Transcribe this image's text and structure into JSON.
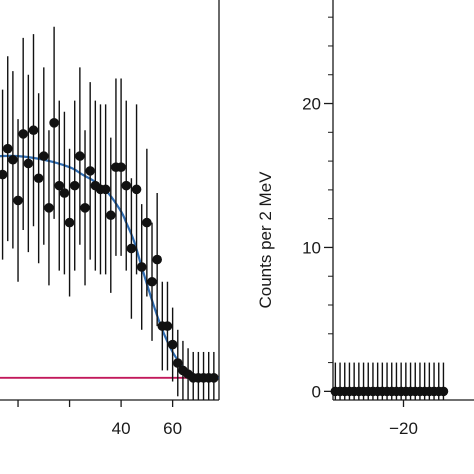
{
  "chart_data": [
    {
      "type": "scatter",
      "title": "",
      "xlabel": "",
      "ylabel": "",
      "xlim": [
        -7,
        78
      ],
      "ylim": [
        -0.6,
        8.6
      ],
      "x_ticks": [
        0,
        20,
        40,
        60,
        80
      ],
      "x_tick_labels": [
        "40",
        "60"
      ],
      "x_tick_label_values": [
        40,
        60
      ],
      "grid": false,
      "series": [
        {
          "kind": "points-with-error-bars",
          "color": "#111111",
          "x": [
            -6,
            -4,
            -2,
            0,
            2,
            4,
            6,
            8,
            10,
            12,
            14,
            16,
            18,
            20,
            22,
            24,
            26,
            28,
            30,
            32,
            34,
            36,
            38,
            40,
            42,
            44,
            46,
            48,
            50,
            52,
            54,
            56,
            58,
            60,
            62,
            64,
            66,
            68,
            70,
            72,
            74,
            76
          ],
          "y": [
            5.5,
            6.2,
            5.9,
            4.8,
            6.6,
            5.8,
            6.7,
            5.4,
            6.0,
            4.6,
            6.9,
            5.2,
            5.0,
            4.2,
            5.2,
            6.0,
            4.6,
            5.6,
            5.2,
            5.1,
            5.1,
            4.4,
            5.7,
            5.7,
            5.2,
            3.5,
            5.1,
            3.0,
            4.2,
            2.6,
            3.2,
            1.4,
            1.4,
            0.9,
            0.4,
            0.2,
            0.1,
            0.0,
            0.0,
            0.0,
            0.0,
            0.0
          ],
          "err": [
            2.3,
            2.5,
            2.4,
            2.2,
            2.6,
            2.4,
            2.6,
            2.3,
            2.4,
            2.1,
            2.6,
            2.3,
            2.2,
            2.0,
            2.3,
            2.4,
            2.1,
            2.4,
            2.3,
            2.3,
            2.3,
            2.1,
            2.4,
            2.4,
            2.3,
            1.9,
            2.3,
            1.7,
            2.0,
            1.6,
            1.8,
            1.2,
            1.2,
            1.0,
            0.9,
            0.8,
            0.7,
            0.7,
            0.7,
            0.7,
            0.7,
            0.7
          ]
        },
        {
          "kind": "fit-curve",
          "color": "#2f6db3",
          "x": [
            -7,
            0,
            10,
            20,
            25,
            30,
            35,
            40,
            42,
            45,
            48,
            52,
            56,
            60,
            64,
            68,
            72,
            78
          ],
          "y": [
            6.0,
            6.0,
            5.9,
            5.7,
            5.5,
            5.3,
            5.0,
            4.5,
            4.2,
            3.7,
            3.0,
            2.1,
            1.3,
            0.7,
            0.3,
            0.1,
            0.03,
            0.0
          ]
        },
        {
          "kind": "background-line",
          "color": "#c2185b",
          "x": [
            -7,
            78
          ],
          "y": [
            0.0,
            0.0
          ]
        }
      ]
    },
    {
      "type": "scatter",
      "title": "",
      "xlabel": "",
      "ylabel": "Counts per 2 MeV",
      "xlim": [
        -35,
        -5
      ],
      "ylim": [
        -0.6,
        29
      ],
      "x_ticks": [
        -20
      ],
      "x_tick_labels": [
        "−20"
      ],
      "y_ticks": [
        0,
        10,
        20
      ],
      "y_tick_labels": [
        "0",
        "10",
        "20"
      ],
      "y_minor_ticks": [
        2,
        4,
        6,
        8,
        12,
        14,
        16,
        18,
        22,
        24,
        26,
        28
      ],
      "grid": false,
      "series": [
        {
          "kind": "points-with-error-bars",
          "color": "#111111",
          "x": [
            -34.5,
            -33.5,
            -32.5,
            -31.5,
            -30.5,
            -29.5,
            -28.5,
            -27.5,
            -26.5,
            -25.5,
            -24.5,
            -23.5,
            -22.5,
            -21.5,
            -20.5,
            -19.5,
            -18.5,
            -17.5,
            -16.5,
            -15.5,
            -14.5,
            -13.5,
            -12.5,
            -11.5
          ],
          "y": [
            0,
            0,
            0,
            0,
            0,
            0,
            0,
            0,
            0,
            0,
            0,
            0,
            0,
            0,
            0,
            0,
            0,
            0,
            0,
            0,
            0,
            0,
            0,
            0
          ],
          "err": [
            2.0,
            2.0,
            2.0,
            2.0,
            2.0,
            2.0,
            2.0,
            2.0,
            2.0,
            2.0,
            2.0,
            2.0,
            2.0,
            2.0,
            2.0,
            2.0,
            2.0,
            2.0,
            2.0,
            2.0,
            2.0,
            2.0,
            2.0,
            2.0
          ]
        },
        {
          "kind": "fit-curve",
          "color": "#2f6db3",
          "x": [
            -35,
            -11.5
          ],
          "y": [
            0,
            0
          ]
        }
      ]
    }
  ]
}
